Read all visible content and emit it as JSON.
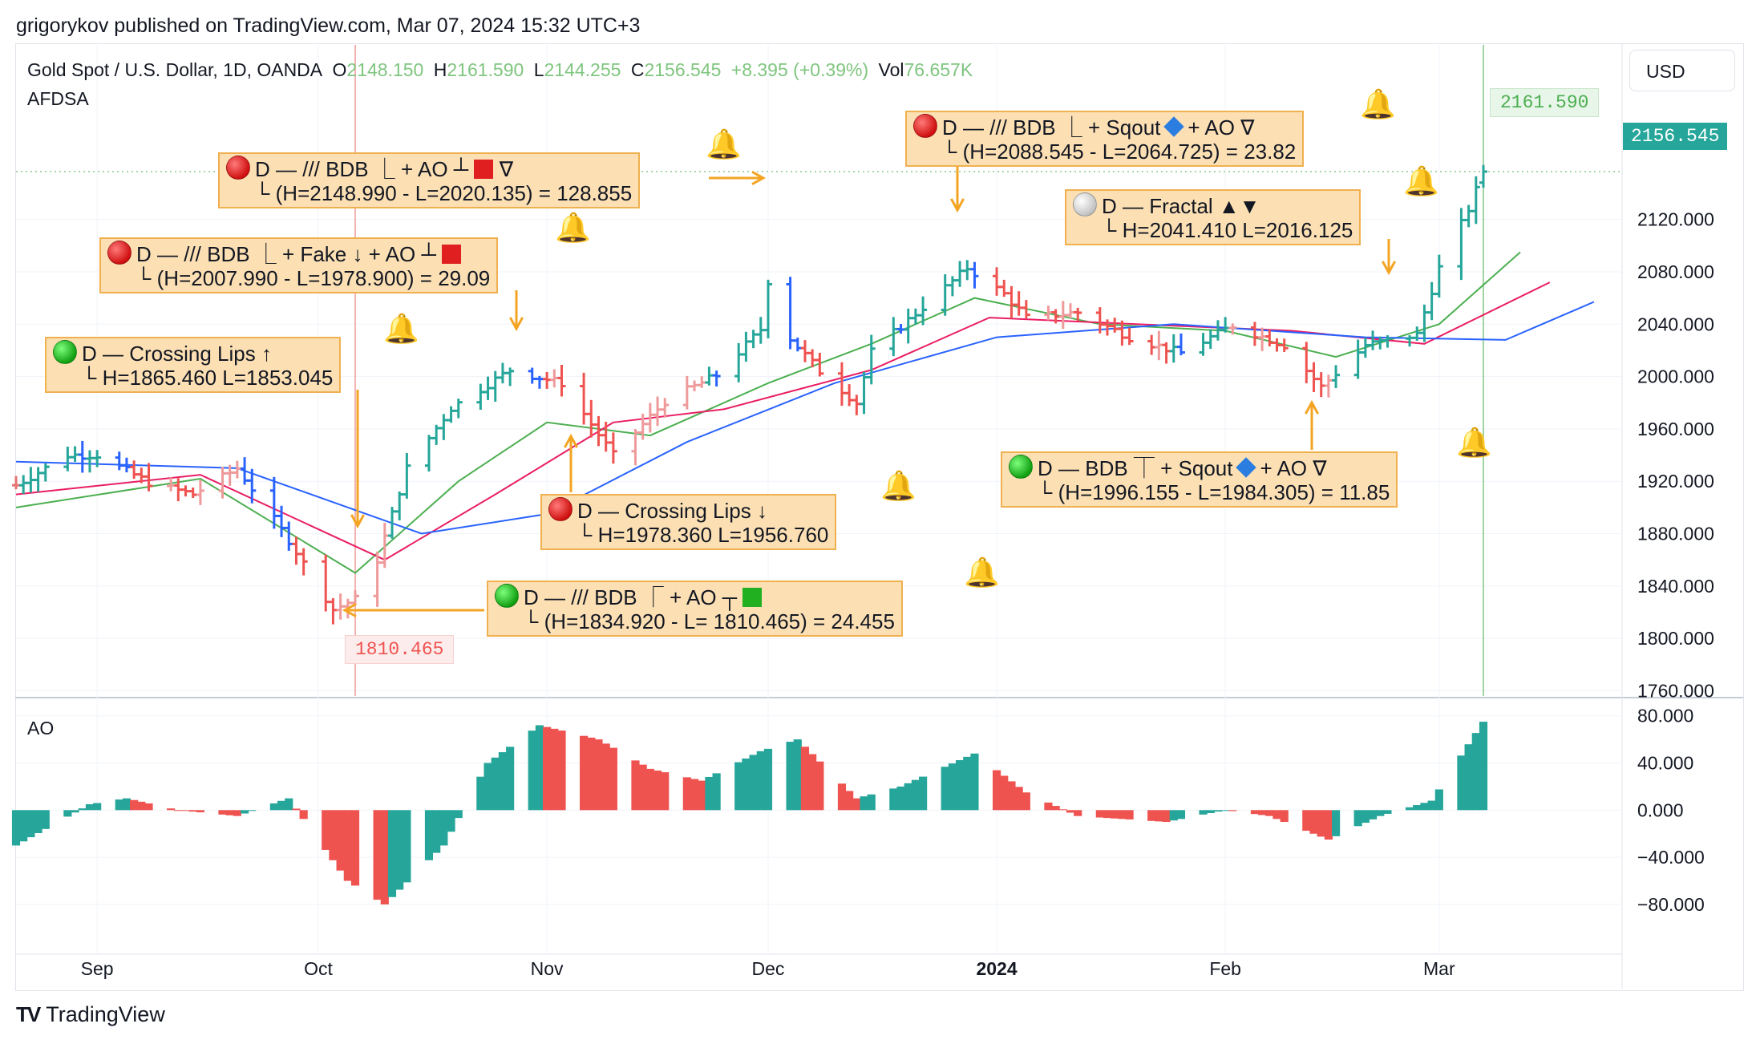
{
  "publisher": "grigorykov published on TradingView.com, Mar 07, 2024 15:32 UTC+3",
  "legend": {
    "symbol": "Gold Spot / U.S. Dollar, 1D, OANDA",
    "o_label": "O",
    "o_value": "2148.150",
    "h_label": "H",
    "h_value": "2161.590",
    "l_label": "L",
    "l_value": "2144.255",
    "c_label": "C",
    "c_value": "2156.545",
    "change": "+8.395 (+0.39%)",
    "vol_label": "Vol",
    "vol_value": "76.657K",
    "indicator": "AFDSA"
  },
  "ao_label": "AO",
  "currency_button": "USD",
  "brand": "TradingView",
  "price_tags": {
    "last_high": "2161.590",
    "last_close": "2156.545",
    "low_mark": "1810.465"
  },
  "colors": {
    "up": "#26a69a",
    "down": "#ef5350",
    "blue_bar": "#2962ff",
    "lips": "#4caf50",
    "teeth": "#e91e63",
    "jaw": "#2962ff",
    "annotation_bg": "#fce0b4",
    "annotation_border": "#f0b050"
  },
  "annotations": [
    {
      "line1": "D — /// BDB ⎿ + AO ┴",
      "suffix": "∇",
      "line2": "└ (H=2148.990 - L=2020.135) = 128.855",
      "dot": "red",
      "square": "red"
    },
    {
      "line1": "D — /// BDB ⎿ + Fake ↓ + AO ┴",
      "suffix": "",
      "line2": "└ (H=2007.990 - L=1978.900) = 29.09",
      "dot": "red",
      "square": "red"
    },
    {
      "line1": "D — Crossing Lips ↑",
      "suffix": "",
      "line2": "└ H=1865.460 L=1853.045",
      "dot": "green",
      "square": ""
    },
    {
      "line1": "D — Crossing Lips ↓",
      "suffix": "",
      "line2": "└ H=1978.360 L=1956.760",
      "dot": "red",
      "square": ""
    },
    {
      "line1": "D — /// BDB ⎾ + AO ┬",
      "suffix": "",
      "line2": "└ (H=1834.920 - L= 1810.465) = 24.455",
      "dot": "green",
      "square": "green"
    },
    {
      "line1": "D — /// BDB ⎿ + Sqout",
      "suffix": "+ AO ∇",
      "line2": "└ (H=2088.545 - L=2064.725) = 23.82",
      "dot": "red",
      "square": "",
      "diamond": true
    },
    {
      "line1": "D — Fractal ▲▼",
      "suffix": "",
      "line2": "└ H=2041.410 L=2016.125",
      "dot": "white",
      "square": ""
    },
    {
      "line1": "D — BDB ⏉ + Sqout",
      "suffix": "+ AO ∇",
      "line2": "└ (H=1996.155 - L=1984.305) = 11.85",
      "dot": "green",
      "square": "",
      "diamond": true
    }
  ],
  "chart_data": [
    {
      "type": "ohlc",
      "title": "Gold Spot / U.S. Dollar, 1D, OANDA",
      "x_labels": [
        "Sep",
        "Oct",
        "Nov",
        "Dec",
        "2024",
        "Feb",
        "Mar"
      ],
      "y_ticks": [
        "2120.000",
        "2080.000",
        "2040.000",
        "2000.000",
        "1960.000",
        "1920.000",
        "1880.000",
        "1840.000",
        "1800.000",
        "1760.000"
      ],
      "ylim": [
        1756,
        2208
      ],
      "date_range": [
        "2023-08-21",
        "2024-03-07"
      ],
      "close_anchors": [
        [
          "2023-08-21",
          1917
        ],
        [
          "2023-08-28",
          1940
        ],
        [
          "2023-09-01",
          1940
        ],
        [
          "2023-09-08",
          1919
        ],
        [
          "2023-09-14",
          1910
        ],
        [
          "2023-09-20",
          1930
        ],
        [
          "2023-09-27",
          1875
        ],
        [
          "2023-10-03",
          1822
        ],
        [
          "2023-10-06",
          1830
        ],
        [
          "2023-10-09",
          1860
        ],
        [
          "2023-10-13",
          1930
        ],
        [
          "2023-10-19",
          1976
        ],
        [
          "2023-10-27",
          2005
        ],
        [
          "2023-11-03",
          1995
        ],
        [
          "2023-11-10",
          1940
        ],
        [
          "2023-11-17",
          1981
        ],
        [
          "2023-11-24",
          2001
        ],
        [
          "2023-11-30",
          2036
        ],
        [
          "2023-12-01",
          2073
        ],
        [
          "2023-12-04",
          2029
        ],
        [
          "2023-12-08",
          2004
        ],
        [
          "2023-12-13",
          1980
        ],
        [
          "2023-12-15",
          2019
        ],
        [
          "2023-12-22",
          2053
        ],
        [
          "2023-12-28",
          2083
        ],
        [
          "2024-01-02",
          2063
        ],
        [
          "2024-01-05",
          2045
        ],
        [
          "2024-01-12",
          2049
        ],
        [
          "2024-01-19",
          2030
        ],
        [
          "2024-01-26",
          2018
        ],
        [
          "2024-02-02",
          2039
        ],
        [
          "2024-02-09",
          2024
        ],
        [
          "2024-02-14",
          1992
        ],
        [
          "2024-02-20",
          2024
        ],
        [
          "2024-02-27",
          2032
        ],
        [
          "2024-03-01",
          2083
        ],
        [
          "2024-03-05",
          2128
        ],
        [
          "2024-03-07",
          2156.545
        ]
      ],
      "series": [
        {
          "name": "Alligator Lips",
          "values": [
            [
              "2023-08-21",
              1900
            ],
            [
              "2023-09-15",
              1922
            ],
            [
              "2023-10-06",
              1850
            ],
            [
              "2023-10-20",
              1920
            ],
            [
              "2023-11-01",
              1965
            ],
            [
              "2023-11-15",
              1955
            ],
            [
              "2023-12-01",
              1995
            ],
            [
              "2023-12-15",
              2025
            ],
            [
              "2023-12-29",
              2060
            ],
            [
              "2024-01-15",
              2040
            ],
            [
              "2024-02-01",
              2035
            ],
            [
              "2024-02-16",
              2015
            ],
            [
              "2024-03-01",
              2040
            ],
            [
              "2024-03-12",
              2095
            ]
          ]
        },
        {
          "name": "Alligator Teeth",
          "values": [
            [
              "2023-08-21",
              1910
            ],
            [
              "2023-09-15",
              1925
            ],
            [
              "2023-10-10",
              1860
            ],
            [
              "2023-10-25",
              1910
            ],
            [
              "2023-11-10",
              1965
            ],
            [
              "2023-11-25",
              1975
            ],
            [
              "2023-12-15",
              2005
            ],
            [
              "2023-12-31",
              2045
            ],
            [
              "2024-01-20",
              2040
            ],
            [
              "2024-02-10",
              2035
            ],
            [
              "2024-02-28",
              2025
            ],
            [
              "2024-03-16",
              2072
            ]
          ]
        },
        {
          "name": "Alligator Jaw",
          "values": [
            [
              "2023-08-21",
              1935
            ],
            [
              "2023-09-20",
              1930
            ],
            [
              "2023-10-15",
              1880
            ],
            [
              "2023-11-01",
              1895
            ],
            [
              "2023-11-20",
              1950
            ],
            [
              "2023-12-10",
              1995
            ],
            [
              "2024-01-01",
              2030
            ],
            [
              "2024-01-25",
              2040
            ],
            [
              "2024-02-20",
              2030
            ],
            [
              "2024-03-10",
              2028
            ],
            [
              "2024-03-22",
              2057
            ]
          ]
        }
      ]
    },
    {
      "type": "bar",
      "title": "AO",
      "y_ticks": [
        "80.000",
        "40.000",
        "0.000",
        "−40.000",
        "−80.000"
      ],
      "ylim": [
        -95,
        90
      ],
      "anchors": [
        [
          "2023-08-21",
          -30
        ],
        [
          "2023-08-31",
          5
        ],
        [
          "2023-09-05",
          10
        ],
        [
          "2023-09-12",
          0
        ],
        [
          "2023-09-20",
          -5
        ],
        [
          "2023-09-27",
          10
        ],
        [
          "2023-10-05",
          -60
        ],
        [
          "2023-10-10",
          -80
        ],
        [
          "2023-10-18",
          -30
        ],
        [
          "2023-10-24",
          40
        ],
        [
          "2023-10-31",
          72
        ],
        [
          "2023-11-08",
          60
        ],
        [
          "2023-11-15",
          35
        ],
        [
          "2023-11-22",
          25
        ],
        [
          "2023-11-30",
          50
        ],
        [
          "2023-12-05",
          60
        ],
        [
          "2023-12-13",
          10
        ],
        [
          "2023-12-19",
          20
        ],
        [
          "2023-12-29",
          48
        ],
        [
          "2024-01-05",
          15
        ],
        [
          "2024-01-12",
          -5
        ],
        [
          "2024-01-24",
          -10
        ],
        [
          "2024-02-01",
          0
        ],
        [
          "2024-02-07",
          -5
        ],
        [
          "2024-02-15",
          -25
        ],
        [
          "2024-02-22",
          -5
        ],
        [
          "2024-02-29",
          8
        ],
        [
          "2024-03-07",
          75
        ]
      ]
    }
  ]
}
